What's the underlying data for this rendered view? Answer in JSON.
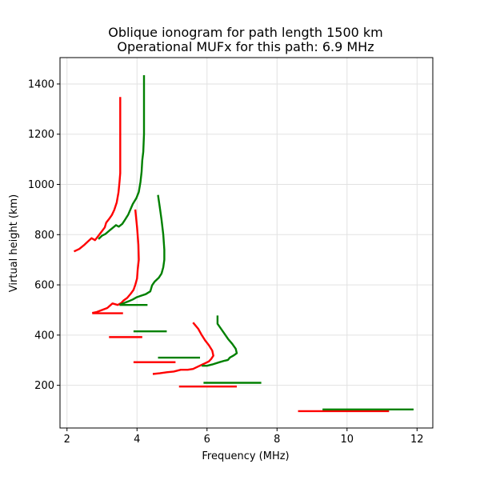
{
  "chart_data": {
    "type": "line",
    "title": "Oblique ionogram for path length 1500 km",
    "subtitle": "Operational MUFx for this path: 6.9 MHz",
    "xlabel": "Frequency (MHz)",
    "ylabel": "Virtual height (km)",
    "xlim": [
      1.8,
      12.45
    ],
    "ylim": [
      30,
      1505
    ],
    "xticks": [
      "2",
      "4",
      "6",
      "8",
      "10",
      "12"
    ],
    "yticks": [
      "200",
      "400",
      "600",
      "800",
      "1000",
      "1200",
      "1400"
    ],
    "grid": true,
    "legend": "none",
    "colors": {
      "o_mode": "#ff0000",
      "x_mode": "#008000"
    },
    "series": [
      {
        "mode": "o",
        "color": "#ff0000",
        "points": [
          [
            2.2,
            733
          ],
          [
            2.35,
            743
          ],
          [
            2.5,
            760
          ],
          [
            2.6,
            773
          ],
          [
            2.7,
            786
          ],
          [
            2.8,
            778
          ],
          [
            2.9,
            796
          ],
          [
            3.0,
            814
          ],
          [
            3.08,
            829
          ],
          [
            3.12,
            848
          ],
          [
            3.2,
            862
          ],
          [
            3.28,
            878
          ],
          [
            3.35,
            898
          ],
          [
            3.42,
            928
          ],
          [
            3.47,
            968
          ],
          [
            3.5,
            1010
          ],
          [
            3.52,
            1045
          ],
          [
            3.52,
            1080
          ],
          [
            3.52,
            1200
          ],
          [
            3.52,
            1348
          ]
        ]
      },
      {
        "mode": "o",
        "color": "#ff0000",
        "points": [
          [
            2.72,
            488
          ],
          [
            2.85,
            492
          ],
          [
            3.0,
            500
          ],
          [
            3.15,
            508
          ],
          [
            3.3,
            526
          ],
          [
            3.45,
            520
          ],
          [
            3.55,
            528
          ],
          [
            3.62,
            538
          ],
          [
            3.72,
            548
          ],
          [
            3.82,
            565
          ],
          [
            3.9,
            580
          ],
          [
            3.95,
            600
          ],
          [
            4.0,
            625
          ],
          [
            4.02,
            660
          ],
          [
            4.05,
            700
          ],
          [
            4.04,
            760
          ],
          [
            4.0,
            830
          ],
          [
            3.95,
            900
          ]
        ]
      },
      {
        "mode": "o",
        "color": "#ff0000",
        "points": [
          [
            4.45,
            245
          ],
          [
            4.65,
            248
          ],
          [
            4.85,
            252
          ],
          [
            5.05,
            255
          ],
          [
            5.25,
            262
          ],
          [
            5.45,
            262
          ],
          [
            5.6,
            265
          ],
          [
            5.75,
            275
          ],
          [
            5.9,
            285
          ],
          [
            6.05,
            295
          ],
          [
            6.12,
            305
          ],
          [
            6.18,
            318
          ],
          [
            6.15,
            338
          ],
          [
            6.05,
            360
          ],
          [
            5.95,
            378
          ],
          [
            5.85,
            400
          ],
          [
            5.75,
            425
          ],
          [
            5.6,
            450
          ]
        ]
      },
      {
        "mode": "x",
        "color": "#008000",
        "points": [
          [
            2.9,
            782
          ],
          [
            3.0,
            796
          ],
          [
            3.1,
            803
          ],
          [
            3.2,
            815
          ],
          [
            3.3,
            826
          ],
          [
            3.4,
            838
          ],
          [
            3.48,
            832
          ],
          [
            3.58,
            843
          ],
          [
            3.66,
            860
          ],
          [
            3.75,
            880
          ],
          [
            3.82,
            903
          ],
          [
            3.88,
            922
          ],
          [
            3.98,
            945
          ],
          [
            4.05,
            970
          ],
          [
            4.1,
            1010
          ],
          [
            4.13,
            1050
          ],
          [
            4.15,
            1095
          ],
          [
            4.18,
            1130
          ],
          [
            4.2,
            1200
          ],
          [
            4.2,
            1300
          ],
          [
            4.2,
            1435
          ]
        ]
      },
      {
        "mode": "x",
        "color": "#008000",
        "points": [
          [
            3.5,
            520
          ],
          [
            3.62,
            527
          ],
          [
            3.75,
            534
          ],
          [
            3.88,
            542
          ],
          [
            3.98,
            550
          ],
          [
            4.1,
            556
          ],
          [
            4.25,
            563
          ],
          [
            4.38,
            574
          ],
          [
            4.43,
            598
          ],
          [
            4.5,
            612
          ],
          [
            4.62,
            628
          ],
          [
            4.7,
            645
          ],
          [
            4.75,
            670
          ],
          [
            4.78,
            700
          ],
          [
            4.78,
            740
          ],
          [
            4.75,
            800
          ],
          [
            4.7,
            860
          ],
          [
            4.65,
            910
          ],
          [
            4.6,
            958
          ]
        ]
      },
      {
        "mode": "x",
        "color": "#008000",
        "points": [
          [
            5.85,
            278
          ],
          [
            6.0,
            278
          ],
          [
            6.15,
            283
          ],
          [
            6.35,
            292
          ],
          [
            6.5,
            298
          ],
          [
            6.6,
            301
          ],
          [
            6.65,
            310
          ],
          [
            6.75,
            318
          ],
          [
            6.85,
            328
          ],
          [
            6.82,
            345
          ],
          [
            6.72,
            365
          ],
          [
            6.6,
            385
          ],
          [
            6.5,
            405
          ],
          [
            6.4,
            425
          ],
          [
            6.3,
            445
          ],
          [
            6.3,
            478
          ]
        ]
      }
    ],
    "segments": [
      {
        "mode": "o",
        "color": "#ff0000",
        "x": [
          2.72,
          3.6
        ],
        "y": 487
      },
      {
        "mode": "o",
        "color": "#ff0000",
        "x": [
          3.2,
          4.15
        ],
        "y": 392
      },
      {
        "mode": "o",
        "color": "#ff0000",
        "x": [
          3.9,
          5.1
        ],
        "y": 292
      },
      {
        "mode": "o",
        "color": "#ff0000",
        "x": [
          5.2,
          6.85
        ],
        "y": 195
      },
      {
        "mode": "o",
        "color": "#ff0000",
        "x": [
          8.6,
          11.2
        ],
        "y": 97
      },
      {
        "mode": "x",
        "color": "#008000",
        "x": [
          3.5,
          4.3
        ],
        "y": 520
      },
      {
        "mode": "x",
        "color": "#008000",
        "x": [
          3.9,
          4.85
        ],
        "y": 415
      },
      {
        "mode": "x",
        "color": "#008000",
        "x": [
          4.6,
          5.8
        ],
        "y": 310
      },
      {
        "mode": "x",
        "color": "#008000",
        "x": [
          5.9,
          7.55
        ],
        "y": 210
      },
      {
        "mode": "x",
        "color": "#008000",
        "x": [
          9.3,
          11.9
        ],
        "y": 104
      }
    ]
  }
}
